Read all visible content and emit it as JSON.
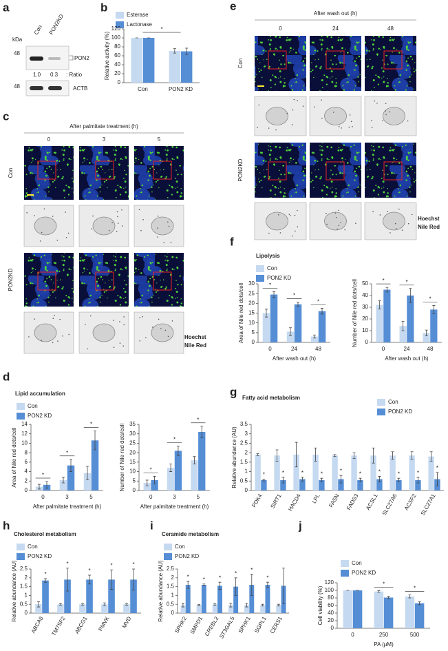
{
  "panel_labels": [
    "a",
    "b",
    "c",
    "d",
    "e",
    "f",
    "g",
    "h",
    "i",
    "j"
  ],
  "blot": {
    "kda": "kDa",
    "lanes": [
      "Con",
      "PON2KD"
    ],
    "markers": [
      "48",
      "48"
    ],
    "bands": [
      "PON2",
      "ACTB"
    ],
    "ratios": [
      "1.0",
      "0.3"
    ],
    "ratio_label": ": Ratio"
  },
  "imaging": [
    {
      "title": "After palmitate treatment (h)",
      "columns": [
        "0",
        "3",
        "5"
      ],
      "rows": [
        "Con",
        "PON2KD"
      ],
      "legend": [
        "Hoechst",
        "Nile Red"
      ],
      "legend_colors": [
        "#2b6fe0",
        "#6ccc3c"
      ]
    },
    {
      "title": "After wash out (h)",
      "columns": [
        "0",
        "24",
        "48"
      ],
      "rows": [
        "Con",
        "PON2KD"
      ],
      "legend": [
        "Hoechst",
        "Nile Red"
      ],
      "legend_colors": [
        "#2b6fe0",
        "#6ccc3c"
      ]
    }
  ],
  "chart_data": [
    {
      "type": "bar",
      "brackets": true,
      "series": [
        {
          "name": "Esterase",
          "color": "#c5d9f1"
        },
        {
          "name": "Lactonase",
          "color": "#558ed5"
        }
      ],
      "subplots": [
        {
          "ylabel": "Relative activity (%)",
          "categories": [
            "Con",
            "PON2 KD"
          ],
          "ylim": [
            0,
            120
          ],
          "yticks": [
            0,
            20,
            40,
            60,
            80,
            100,
            120
          ],
          "values": [
            [
              100,
              71
            ],
            [
              100,
              70
            ]
          ],
          "errors": [
            [
              0,
              5
            ],
            [
              0,
              7
            ]
          ],
          "significance": "*"
        }
      ]
    },
    {
      "type": "bar",
      "title": "Lipolysis",
      "brackets": true,
      "series": [
        {
          "name": "Con",
          "color": "#c5d9f1"
        },
        {
          "name": "PON2 KD",
          "color": "#558ed5"
        }
      ],
      "subplots": [
        {
          "ylabel": "Area of Nile red dots/cell",
          "xlabel": "After wash out (h)",
          "categories": [
            "0",
            "24",
            "48"
          ],
          "ylim": [
            0,
            30
          ],
          "yticks": [
            0,
            5,
            10,
            15,
            20,
            25,
            30
          ],
          "values": [
            [
              15,
              5.5,
              3
            ],
            [
              24.5,
              19.5,
              16
            ]
          ],
          "errors": [
            [
              2,
              2,
              0.8
            ],
            [
              1.5,
              1.2,
              1.5
            ]
          ],
          "significance": [
            "*",
            "*",
            "*"
          ]
        },
        {
          "ylabel": "Number of Nile red dots/cell",
          "xlabel": "After wash out (h)",
          "categories": [
            "0",
            "24",
            "48"
          ],
          "ylim": [
            0,
            50
          ],
          "yticks": [
            0,
            10,
            20,
            30,
            40,
            50
          ],
          "values": [
            [
              32,
              14,
              8
            ],
            [
              45,
              40,
              28
            ]
          ],
          "errors": [
            [
              3.5,
              4,
              2.5
            ],
            [
              2,
              6,
              3.5
            ]
          ],
          "significance": [
            "*",
            "*",
            "*"
          ]
        }
      ]
    },
    {
      "type": "bar",
      "title": "Lipid accumulation",
      "brackets": true,
      "series": [
        {
          "name": "Con",
          "color": "#c5d9f1"
        },
        {
          "name": "PON2 KD",
          "color": "#558ed5"
        }
      ],
      "subplots": [
        {
          "ylabel": "Area of Nile red dots/cell",
          "xlabel": "After palmitate treatment (h)",
          "categories": [
            "0",
            "3",
            "5"
          ],
          "ylim": [
            0,
            14
          ],
          "yticks": [
            0,
            2,
            4,
            6,
            8,
            10,
            12,
            14
          ],
          "values": [
            [
              0.8,
              2.2,
              3.7
            ],
            [
              1.2,
              5.3,
              10.6
            ]
          ],
          "errors": [
            [
              0.5,
              0.6,
              1.4
            ],
            [
              0.7,
              1.3,
              2
            ]
          ],
          "significance": [
            "*",
            "*",
            "*"
          ]
        },
        {
          "ylabel": "Number of Nile red dots/cell",
          "xlabel": "After palmitate treatment (h)",
          "categories": [
            "0",
            "3",
            "5"
          ],
          "ylim": [
            0,
            35
          ],
          "yticks": [
            0,
            5,
            10,
            15,
            20,
            25,
            30,
            35
          ],
          "values": [
            [
              4,
              12,
              16
            ],
            [
              5.5,
              21,
              31
            ]
          ],
          "errors": [
            [
              1.5,
              2,
              2
            ],
            [
              2,
              2.5,
              3
            ]
          ],
          "significance": [
            "*",
            "*",
            "*"
          ]
        }
      ]
    },
    {
      "type": "bar",
      "title": "Fatty acid metabolism",
      "brackets": false,
      "rotate_labels": true,
      "series": [
        {
          "name": "Con",
          "color": "#c5d9f1"
        },
        {
          "name": "PON2 KD",
          "color": "#558ed5"
        }
      ],
      "subplots": [
        {
          "ylabel": "Relative abundance (AU)",
          "categories": [
            "PDK4",
            "SIRT1",
            "HACD4",
            "LPL",
            "FASN",
            "FADS3",
            "ACSL1",
            "SLC27A6",
            "ACSF2",
            "SLC27A1"
          ],
          "ylim": [
            0,
            3.5
          ],
          "yticks": [
            0,
            0.5,
            1,
            1.5,
            2,
            2.5,
            3,
            3.5
          ],
          "values": [
            [
              1.9,
              1.85,
              1.9,
              1.9,
              1.85,
              1.85,
              1.85,
              1.85,
              1.85,
              1.8
            ],
            [
              0.55,
              0.55,
              0.6,
              0.55,
              0.6,
              0.55,
              0.6,
              0.55,
              0.55,
              0.6
            ]
          ],
          "errors": [
            [
              0.05,
              0.3,
              0.65,
              0.35,
              0.05,
              0.15,
              0.4,
              0.2,
              0.2,
              0.25
            ],
            [
              0.05,
              0.15,
              0.1,
              0.1,
              0.2,
              0.1,
              0.15,
              0.1,
              0.15,
              0.35
            ]
          ],
          "significance": [
            "*",
            "*",
            "*",
            "*",
            "*",
            "*",
            "*",
            "*",
            "*",
            "*"
          ]
        }
      ]
    },
    {
      "type": "bar",
      "title": "Cholesterol metabolism",
      "brackets": false,
      "rotate_labels": true,
      "series": [
        {
          "name": "Con",
          "color": "#c5d9f1"
        },
        {
          "name": "PON2 KD",
          "color": "#558ed5"
        }
      ],
      "subplots": [
        {
          "ylabel": "Relative abundance (AU)",
          "categories": [
            "ABCA8",
            "TM7SF2",
            "ABCG1",
            "PMVK",
            "MVD"
          ],
          "ylim": [
            0,
            2.5
          ],
          "yticks": [
            0,
            0.5,
            1,
            1.5,
            2,
            2.5
          ],
          "values": [
            [
              0.5,
              0.5,
              0.5,
              0.5,
              0.5
            ],
            [
              1.85,
              1.9,
              1.9,
              1.9,
              1.9
            ]
          ],
          "errors": [
            [
              0.15,
              0.05,
              0.05,
              0.08,
              0.05
            ],
            [
              0.1,
              0.65,
              0.25,
              0.55,
              0.6
            ]
          ],
          "significance": [
            "*",
            "*",
            "*",
            "*",
            "*"
          ]
        }
      ]
    },
    {
      "type": "bar",
      "title": "Ceramide metabolism",
      "brackets": false,
      "rotate_labels": true,
      "series": [
        {
          "name": "Con",
          "color": "#c5d9f1"
        },
        {
          "name": "PON2 KD",
          "color": "#558ed5"
        }
      ],
      "subplots": [
        {
          "ylabel": "Relative abundance (AU)",
          "categories": [
            "SPHK2",
            "SMPD1",
            "CREBL2",
            "ST3GAL5",
            "SPHK1",
            "SGPL1",
            "CERS1"
          ],
          "ylim": [
            0,
            2.5
          ],
          "yticks": [
            0,
            0.5,
            1,
            1.5,
            2,
            2.5
          ],
          "values": [
            [
              0.45,
              0.45,
              0.5,
              0.45,
              0.45,
              0.45,
              0.45
            ],
            [
              1.6,
              1.6,
              1.55,
              1.5,
              1.6,
              1.6,
              1.55
            ]
          ],
          "errors": [
            [
              0.1,
              0.03,
              0.05,
              0.1,
              0.1,
              0.05,
              0.05
            ],
            [
              0.2,
              0.05,
              0.2,
              0.5,
              0.6,
              0.15,
              1
            ]
          ],
          "significance": [
            "*",
            "*",
            "*",
            "*",
            "*",
            "*",
            null
          ]
        }
      ]
    },
    {
      "type": "bar",
      "brackets": true,
      "series": [
        {
          "name": "Con",
          "color": "#c5d9f1"
        },
        {
          "name": "PON2 KD",
          "color": "#558ed5"
        }
      ],
      "subplots": [
        {
          "ylabel": "Cell viability (%)",
          "xlabel": "PA (μM)",
          "categories": [
            "0",
            "250",
            "500"
          ],
          "ylim": [
            0,
            120
          ],
          "yticks": [
            0,
            20,
            40,
            60,
            80,
            100,
            120
          ],
          "values": [
            [
              100,
              97,
              84
            ],
            [
              100,
              81,
              66
            ]
          ],
          "errors": [
            [
              0,
              2,
              4
            ],
            [
              0,
              3,
              4
            ]
          ],
          "significance": [
            null,
            "*",
            "*"
          ]
        }
      ]
    }
  ]
}
